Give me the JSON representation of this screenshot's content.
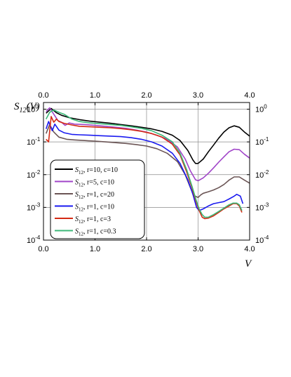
{
  "chart_data": {
    "type": "line",
    "ylabel": "S12(V)",
    "ylabel_main": "S",
    "ylabel_sub": "12",
    "ylabel_rest": "(V)",
    "xlabel": "V",
    "xlim": [
      0,
      4
    ],
    "ylim": [
      0.0001,
      1.6
    ],
    "yscale": "log",
    "grid": true,
    "legend_position": "lower-left",
    "x_ticks": [
      "0.0",
      "1.0",
      "2.0",
      "3.0",
      "4.0"
    ],
    "y_ticks": [
      {
        "mant": "10",
        "exp": "0"
      },
      {
        "mant": "10",
        "exp": "-1"
      },
      {
        "mant": "10",
        "exp": "-2"
      },
      {
        "mant": "10",
        "exp": "-3"
      },
      {
        "mant": "10",
        "exp": "-4"
      }
    ],
    "series": [
      {
        "name": "S12, r=10, c=10",
        "label_main": "S",
        "label_sub": "12",
        "label_params": ", r=10, c=10",
        "color": "#000000",
        "points": [
          [
            0.05,
            0.75
          ],
          [
            0.15,
            1.05
          ],
          [
            0.25,
            0.78
          ],
          [
            0.35,
            0.65
          ],
          [
            0.5,
            0.55
          ],
          [
            0.7,
            0.48
          ],
          [
            0.9,
            0.43
          ],
          [
            1.1,
            0.4
          ],
          [
            1.3,
            0.37
          ],
          [
            1.5,
            0.34
          ],
          [
            1.7,
            0.31
          ],
          [
            1.9,
            0.28
          ],
          [
            2.1,
            0.25
          ],
          [
            2.3,
            0.21
          ],
          [
            2.5,
            0.16
          ],
          [
            2.65,
            0.11
          ],
          [
            2.8,
            0.055
          ],
          [
            2.9,
            0.028
          ],
          [
            2.95,
            0.022
          ],
          [
            3.0,
            0.022
          ],
          [
            3.1,
            0.03
          ],
          [
            3.2,
            0.05
          ],
          [
            3.3,
            0.08
          ],
          [
            3.4,
            0.13
          ],
          [
            3.5,
            0.2
          ],
          [
            3.6,
            0.27
          ],
          [
            3.7,
            0.31
          ],
          [
            3.8,
            0.28
          ],
          [
            3.9,
            0.2
          ],
          [
            4.0,
            0.15
          ]
        ]
      },
      {
        "name": "S12, r=5, c=10",
        "label_main": "S",
        "label_sub": "12",
        "label_params": ", r=5, c=10",
        "color": "#a044c8",
        "points": [
          [
            0.05,
            0.85
          ],
          [
            0.12,
            1.1
          ],
          [
            0.2,
            0.7
          ],
          [
            0.28,
            0.45
          ],
          [
            0.35,
            0.4
          ],
          [
            0.42,
            0.32
          ],
          [
            0.5,
            0.38
          ],
          [
            0.6,
            0.35
          ],
          [
            0.8,
            0.34
          ],
          [
            1.0,
            0.32
          ],
          [
            1.2,
            0.3
          ],
          [
            1.4,
            0.28
          ],
          [
            1.6,
            0.26
          ],
          [
            1.8,
            0.23
          ],
          [
            2.0,
            0.2
          ],
          [
            2.2,
            0.16
          ],
          [
            2.4,
            0.12
          ],
          [
            2.6,
            0.07
          ],
          [
            2.75,
            0.03
          ],
          [
            2.85,
            0.013
          ],
          [
            2.95,
            0.007
          ],
          [
            3.0,
            0.0065
          ],
          [
            3.1,
            0.008
          ],
          [
            3.2,
            0.011
          ],
          [
            3.3,
            0.016
          ],
          [
            3.4,
            0.024
          ],
          [
            3.5,
            0.035
          ],
          [
            3.6,
            0.05
          ],
          [
            3.7,
            0.06
          ],
          [
            3.8,
            0.058
          ],
          [
            3.9,
            0.042
          ],
          [
            4.0,
            0.032
          ]
        ]
      },
      {
        "name": "S12, r=1, c=20",
        "label_main": "S",
        "label_sub": "12",
        "label_params": ", r=1, c=20",
        "color": "#6b5555",
        "points": [
          [
            0.05,
            0.18
          ],
          [
            0.12,
            0.34
          ],
          [
            0.2,
            0.2
          ],
          [
            0.3,
            0.14
          ],
          [
            0.45,
            0.12
          ],
          [
            0.6,
            0.115
          ],
          [
            0.8,
            0.11
          ],
          [
            1.0,
            0.105
          ],
          [
            1.2,
            0.1
          ],
          [
            1.4,
            0.095
          ],
          [
            1.6,
            0.09
          ],
          [
            1.8,
            0.083
          ],
          [
            2.0,
            0.075
          ],
          [
            2.2,
            0.062
          ],
          [
            2.4,
            0.045
          ],
          [
            2.6,
            0.025
          ],
          [
            2.75,
            0.01
          ],
          [
            2.85,
            0.004
          ],
          [
            2.92,
            0.0023
          ],
          [
            3.0,
            0.002
          ],
          [
            3.05,
            0.0024
          ],
          [
            3.1,
            0.0027
          ],
          [
            3.2,
            0.003
          ],
          [
            3.3,
            0.0034
          ],
          [
            3.4,
            0.004
          ],
          [
            3.5,
            0.005
          ],
          [
            3.6,
            0.0068
          ],
          [
            3.7,
            0.0085
          ],
          [
            3.8,
            0.0085
          ],
          [
            3.9,
            0.0068
          ],
          [
            4.0,
            0.0055
          ]
        ]
      },
      {
        "name": "S12, r=1, c=10",
        "label_main": "S",
        "label_sub": "12",
        "label_params": ", r=1, c=10",
        "color": "#1a1af0",
        "points": [
          [
            0.05,
            0.25
          ],
          [
            0.1,
            0.42
          ],
          [
            0.17,
            0.22
          ],
          [
            0.22,
            0.35
          ],
          [
            0.3,
            0.23
          ],
          [
            0.4,
            0.19
          ],
          [
            0.55,
            0.17
          ],
          [
            0.7,
            0.165
          ],
          [
            0.9,
            0.16
          ],
          [
            1.1,
            0.155
          ],
          [
            1.3,
            0.15
          ],
          [
            1.5,
            0.145
          ],
          [
            1.7,
            0.135
          ],
          [
            1.9,
            0.12
          ],
          [
            2.1,
            0.1
          ],
          [
            2.3,
            0.075
          ],
          [
            2.5,
            0.045
          ],
          [
            2.65,
            0.022
          ],
          [
            2.8,
            0.007
          ],
          [
            2.9,
            0.0025
          ],
          [
            2.97,
            0.001
          ],
          [
            3.02,
            0.0008
          ],
          [
            3.1,
            0.0009
          ],
          [
            3.2,
            0.0011
          ],
          [
            3.3,
            0.0013
          ],
          [
            3.4,
            0.0014
          ],
          [
            3.5,
            0.0015
          ],
          [
            3.6,
            0.0018
          ],
          [
            3.7,
            0.0022
          ],
          [
            3.75,
            0.0025
          ],
          [
            3.82,
            0.0022
          ],
          [
            3.87,
            0.0013
          ]
        ]
      },
      {
        "name": "S12, r=1, c=3",
        "label_main": "S",
        "label_sub": "12",
        "label_params": ", r=1, c=3",
        "color": "#d42a14",
        "points": [
          [
            0.05,
            0.12
          ],
          [
            0.1,
            0.1
          ],
          [
            0.15,
            0.6
          ],
          [
            0.2,
            0.4
          ],
          [
            0.25,
            0.5
          ],
          [
            0.3,
            0.42
          ],
          [
            0.4,
            0.37
          ],
          [
            0.55,
            0.33
          ],
          [
            0.7,
            0.3
          ],
          [
            0.9,
            0.29
          ],
          [
            1.1,
            0.28
          ],
          [
            1.3,
            0.27
          ],
          [
            1.5,
            0.255
          ],
          [
            1.7,
            0.235
          ],
          [
            1.9,
            0.21
          ],
          [
            2.1,
            0.18
          ],
          [
            2.3,
            0.14
          ],
          [
            2.5,
            0.085
          ],
          [
            2.65,
            0.04
          ],
          [
            2.78,
            0.012
          ],
          [
            2.88,
            0.004
          ],
          [
            2.96,
            0.0015
          ],
          [
            3.02,
            0.0008
          ],
          [
            3.08,
            0.0005
          ],
          [
            3.13,
            0.00045
          ],
          [
            3.2,
            0.00047
          ],
          [
            3.3,
            0.00055
          ],
          [
            3.4,
            0.0007
          ],
          [
            3.5,
            0.0009
          ],
          [
            3.6,
            0.0011
          ],
          [
            3.68,
            0.0013
          ],
          [
            3.75,
            0.0013
          ],
          [
            3.8,
            0.0011
          ],
          [
            3.85,
            0.0007
          ]
        ]
      },
      {
        "name": "S12, r=1, c=0.3",
        "label_main": "S",
        "label_sub": "12",
        "label_params": ", r=1, c=0.3",
        "color": "#3cb878",
        "points": [
          [
            0.05,
            0.5
          ],
          [
            0.12,
            0.8
          ],
          [
            0.2,
            0.95
          ],
          [
            0.3,
            0.8
          ],
          [
            0.4,
            0.7
          ],
          [
            0.55,
            0.5
          ],
          [
            0.7,
            0.42
          ],
          [
            0.9,
            0.38
          ],
          [
            1.1,
            0.36
          ],
          [
            1.3,
            0.34
          ],
          [
            1.5,
            0.32
          ],
          [
            1.7,
            0.29
          ],
          [
            1.9,
            0.26
          ],
          [
            2.1,
            0.22
          ],
          [
            2.3,
            0.16
          ],
          [
            2.5,
            0.1
          ],
          [
            2.65,
            0.045
          ],
          [
            2.78,
            0.014
          ],
          [
            2.88,
            0.0045
          ],
          [
            2.96,
            0.0017
          ],
          [
            3.02,
            0.0009
          ],
          [
            3.08,
            0.0006
          ],
          [
            3.13,
            0.0005
          ],
          [
            3.2,
            0.0005
          ],
          [
            3.3,
            0.0006
          ],
          [
            3.4,
            0.00075
          ],
          [
            3.5,
            0.00095
          ],
          [
            3.6,
            0.0012
          ],
          [
            3.68,
            0.00135
          ],
          [
            3.75,
            0.00135
          ],
          [
            3.8,
            0.0012
          ],
          [
            3.85,
            0.0008
          ]
        ]
      }
    ]
  }
}
